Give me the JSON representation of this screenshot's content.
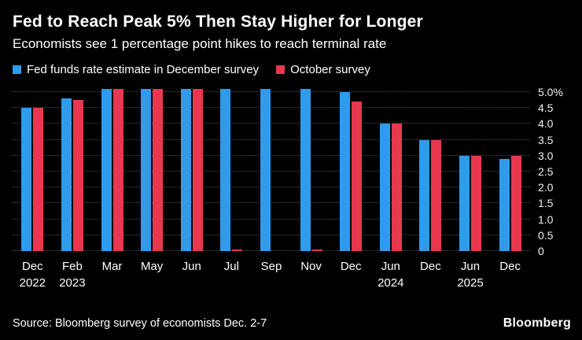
{
  "header": {
    "title": "Fed to Reach Peak 5% Then Stay Higher for Longer",
    "subtitle": "Economists see 1 percentage point hikes to reach terminal rate"
  },
  "footer": {
    "source": "Source: Bloomberg survey of economists Dec. 2-7",
    "logo": "Bloomberg"
  },
  "colors": {
    "background": "#000000",
    "december_series": "#2F9BEA",
    "october_series": "#E8384F",
    "gridline": "#4a4a4a",
    "text": "#ffffff"
  },
  "chart_data": {
    "type": "bar",
    "title": "Fed to Reach Peak 5% Then Stay Higher for Longer",
    "subtitle": "Economists see 1 percentage point hikes to reach terminal rate",
    "legend_position": "top",
    "grid": "dotted-horizontal",
    "ylabel": "",
    "xlabel": "",
    "ylim": [
      0,
      5.0
    ],
    "scale_max": 5.2,
    "yticks": [
      {
        "value": 5.0,
        "label": "5.0%"
      },
      {
        "value": 4.5,
        "label": "4.5"
      },
      {
        "value": 4.0,
        "label": "4.0"
      },
      {
        "value": 3.5,
        "label": "3.5"
      },
      {
        "value": 3.0,
        "label": "3.0"
      },
      {
        "value": 2.5,
        "label": "2.5"
      },
      {
        "value": 2.0,
        "label": "2.0"
      },
      {
        "value": 1.5,
        "label": "1.5"
      },
      {
        "value": 1.0,
        "label": "1.0"
      },
      {
        "value": 0.5,
        "label": "0.5"
      },
      {
        "value": 0.0,
        "label": "0"
      }
    ],
    "categories": [
      {
        "month": "Dec",
        "year": "2022"
      },
      {
        "month": "Feb",
        "year": "2023"
      },
      {
        "month": "Mar",
        "year": ""
      },
      {
        "month": "May",
        "year": ""
      },
      {
        "month": "Jun",
        "year": ""
      },
      {
        "month": "Jul",
        "year": ""
      },
      {
        "month": "Sep",
        "year": ""
      },
      {
        "month": "Nov",
        "year": ""
      },
      {
        "month": "Dec",
        "year": ""
      },
      {
        "month": "Jun",
        "year": "2024"
      },
      {
        "month": "Dec",
        "year": ""
      },
      {
        "month": "Jun",
        "year": "2025"
      },
      {
        "month": "Dec",
        "year": ""
      }
    ],
    "series": [
      {
        "name": "Fed funds rate estimate in December survey",
        "color": "#2F9BEA",
        "values": [
          4.5,
          4.8,
          5.1,
          5.1,
          5.1,
          5.1,
          5.1,
          5.1,
          5.0,
          4.0,
          3.5,
          3.0,
          2.9
        ]
      },
      {
        "name": "October survey",
        "color": "#E8384F",
        "values": [
          4.5,
          4.75,
          5.1,
          5.1,
          5.1,
          0.05,
          0,
          0.05,
          4.7,
          4.0,
          3.5,
          3.0,
          3.0
        ]
      }
    ]
  }
}
